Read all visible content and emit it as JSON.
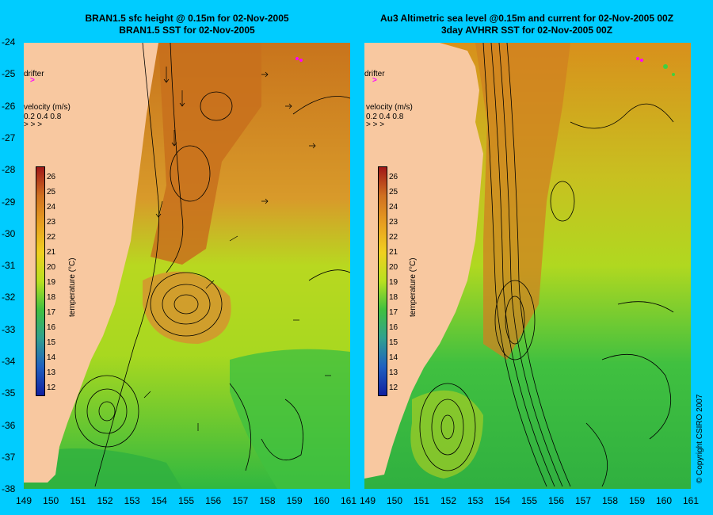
{
  "left_panel": {
    "title_line1": "BRAN1.5 sfc height @ 0.15m for 02-Nov-2005",
    "title_line2": "BRAN1.5 SST for 02-Nov-2005"
  },
  "right_panel": {
    "title_line1": "Au3 Altimetric sea level  @0.15m and current for 02-Nov-2005 00Z",
    "title_line2": "3day AVHRR SST for 02-Nov-2005 00Z"
  },
  "legend": {
    "drifter_label": "drifter",
    "velocity_title": "velocity (m/s)",
    "velocity_scale": "0.2 0.4 0.8",
    "colorbar_label": "temperature (°C)",
    "colorbar_ticks": [
      "26",
      "25",
      "24",
      "23",
      "22",
      "21",
      "20",
      "19",
      "18",
      "17",
      "16",
      "15",
      "14",
      "13",
      "12"
    ]
  },
  "axes": {
    "y_ticks": [
      "-24",
      "-25",
      "-26",
      "-27",
      "-28",
      "-29",
      "-30",
      "-31",
      "-32",
      "-33",
      "-34",
      "-35",
      "-36",
      "-37",
      "-38"
    ],
    "x_ticks": [
      "149",
      "150",
      "151",
      "152",
      "153",
      "154",
      "155",
      "156",
      "157",
      "158",
      "159",
      "160",
      "161"
    ]
  },
  "copyright": "© Copyright CSIRO 2007",
  "colors": {
    "background": "#00ccff",
    "land": "#f8c8a0",
    "drifter": "#ff00ff"
  }
}
